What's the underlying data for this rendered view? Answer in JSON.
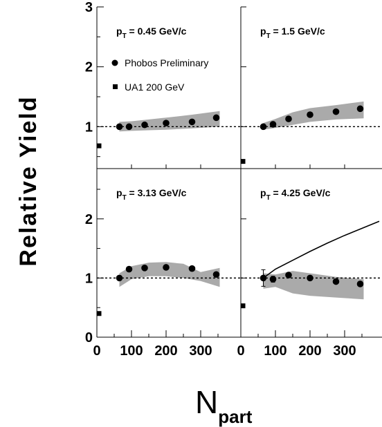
{
  "chart_data": {
    "type": "scatter",
    "xlabel": "N",
    "xlabel_sub": "part",
    "ylabel": "Relative Yield",
    "legend": [
      {
        "name": "Phobos Preliminary",
        "marker": "circle"
      },
      {
        "name": "UA1 200 GeV",
        "marker": "square"
      }
    ],
    "x_ticks": [
      "0",
      "100",
      "200",
      "300"
    ],
    "y_ticks_top": [
      "1",
      "2",
      "3"
    ],
    "y_ticks_bottom": [
      "0",
      "1",
      "2"
    ],
    "panels": [
      {
        "title_main": "p",
        "title_sub": "T",
        "title_rest": " = 0.45 GeV/c",
        "row": "top",
        "col": 0,
        "xlim": [
          0,
          400
        ],
        "ylim": [
          0.3,
          3
        ],
        "phobos": {
          "x": [
            65,
            93,
            138,
            200,
            275,
            345
          ],
          "y": [
            1.0,
            1.0,
            1.03,
            1.06,
            1.08,
            1.15
          ]
        },
        "band_upper": {
          "x": [
            65,
            100,
            150,
            200,
            275,
            355
          ],
          "y": [
            1.08,
            1.09,
            1.12,
            1.15,
            1.2,
            1.26
          ]
        },
        "band_lower": {
          "x": [
            65,
            100,
            150,
            200,
            275,
            355
          ],
          "y": [
            0.92,
            0.93,
            0.94,
            0.95,
            0.97,
            1.0
          ]
        },
        "ua1": {
          "x": [
            0
          ],
          "y": [
            0.68
          ]
        },
        "reference_line": 1.0
      },
      {
        "title_main": "p",
        "title_sub": "T",
        "title_rest": " = 1.5 GeV/c",
        "row": "top",
        "col": 1,
        "xlim": [
          0,
          400
        ],
        "ylim": [
          0.3,
          3
        ],
        "phobos": {
          "x": [
            65,
            93,
            138,
            200,
            275,
            345
          ],
          "y": [
            1.0,
            1.04,
            1.13,
            1.2,
            1.25,
            1.3
          ]
        },
        "band_upper": {
          "x": [
            65,
            100,
            150,
            200,
            275,
            355
          ],
          "y": [
            1.06,
            1.13,
            1.24,
            1.31,
            1.36,
            1.42
          ]
        },
        "band_lower": {
          "x": [
            65,
            100,
            150,
            200,
            275,
            355
          ],
          "y": [
            0.95,
            0.98,
            1.03,
            1.08,
            1.12,
            1.14
          ]
        },
        "ua1": {
          "x": [
            0
          ],
          "y": [
            0.42
          ]
        },
        "reference_line": 1.0
      },
      {
        "title_main": "p",
        "title_sub": "T",
        "title_rest": " = 3.13 GeV/c",
        "row": "bottom",
        "col": 0,
        "xlim": [
          0,
          400
        ],
        "ylim": [
          0,
          2.85
        ],
        "phobos": {
          "x": [
            65,
            93,
            138,
            200,
            275,
            345
          ],
          "y": [
            1.0,
            1.15,
            1.17,
            1.18,
            1.16,
            1.06
          ]
        },
        "band_upper": {
          "x": [
            65,
            100,
            150,
            200,
            250,
            300,
            355
          ],
          "y": [
            1.08,
            1.2,
            1.26,
            1.27,
            1.24,
            1.1,
            1.17
          ]
        },
        "band_lower": {
          "x": [
            65,
            100,
            150,
            200,
            250,
            300,
            355
          ],
          "y": [
            0.85,
            0.98,
            1.03,
            1.03,
            1.0,
            0.95,
            0.85
          ]
        },
        "ua1": {
          "x": [
            0
          ],
          "y": [
            0.4
          ]
        },
        "reference_line": 1.0
      },
      {
        "title_main": "p",
        "title_sub": "T",
        "title_rest": " = 4.25 GeV/c",
        "row": "bottom",
        "col": 1,
        "xlim": [
          0,
          400
        ],
        "ylim": [
          0,
          2.85
        ],
        "phobos": {
          "x": [
            65,
            93,
            138,
            200,
            275,
            345
          ],
          "y": [
            1.0,
            0.98,
            1.05,
            1.0,
            0.94,
            0.9
          ]
        },
        "phobos_err": [
          0.14,
          0.05,
          0.03,
          0.03,
          0.03,
          0.03
        ],
        "band_upper": {
          "x": [
            65,
            100,
            150,
            200,
            275,
            355
          ],
          "y": [
            1.08,
            1.06,
            1.12,
            1.08,
            1.02,
            0.98
          ]
        },
        "band_lower": {
          "x": [
            65,
            100,
            150,
            200,
            275,
            355
          ],
          "y": [
            0.82,
            0.85,
            0.74,
            0.7,
            0.67,
            0.64
          ]
        },
        "curve": {
          "x": [
            65,
            100,
            150,
            200,
            250,
            300,
            350,
            400
          ],
          "y": [
            1.0,
            1.15,
            1.3,
            1.45,
            1.59,
            1.72,
            1.84,
            1.96
          ]
        },
        "ua1": {
          "x": [
            0
          ],
          "y": [
            0.53
          ]
        },
        "reference_line": 1.0
      }
    ]
  },
  "colors": {
    "band": "#aaaaaa",
    "marker": "#000000",
    "axis": "#000000"
  }
}
